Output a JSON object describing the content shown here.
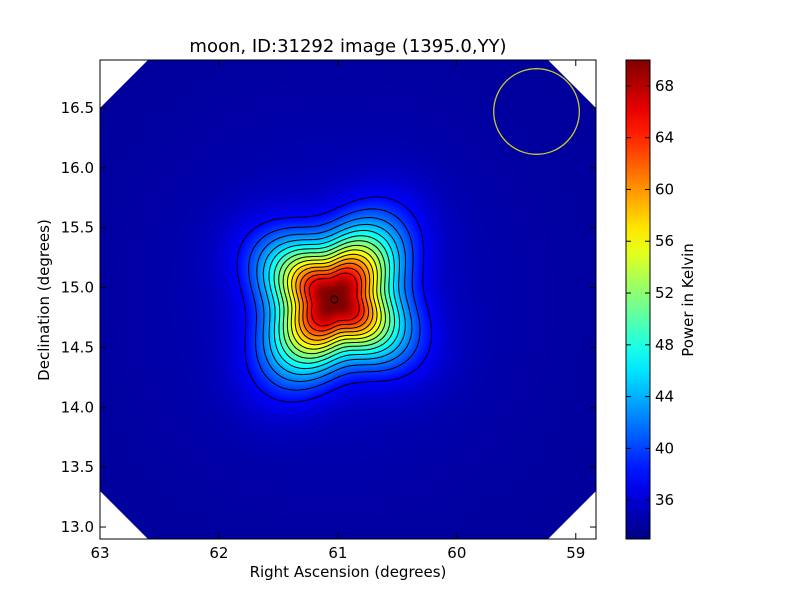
{
  "chart_data": {
    "type": "heatmap",
    "title": "moon, ID:31292 image (1395.0,YY)",
    "xlabel": "Right Ascension (degrees)",
    "ylabel": "Declination (degrees)",
    "xlim": [
      63.0,
      58.83
    ],
    "ylim": [
      12.9,
      16.9
    ],
    "x_inverted": true,
    "xticks": [
      63,
      62,
      61,
      60,
      59
    ],
    "yticks": [
      13.0,
      13.5,
      14.0,
      14.5,
      15.0,
      15.5,
      16.0,
      16.5
    ],
    "colorbar": {
      "label": "Power in Kelvin",
      "min": 33.0,
      "max": 70.0,
      "ticks": [
        36,
        40,
        44,
        48,
        52,
        56,
        60,
        64,
        68
      ],
      "colormap": "jet"
    },
    "source": {
      "center_ra": 61.03,
      "center_dec": 14.9,
      "peak_kelvin": 69.5,
      "background_kelvin": 34.0,
      "marker": "circle"
    },
    "contours": {
      "count": 14,
      "color": "#000000"
    },
    "beam_circle": {
      "center_ra": 59.33,
      "center_dec": 16.47,
      "radius_deg": 0.36,
      "color": "#c8c832"
    },
    "masked_corners_color": "#ffffff"
  }
}
